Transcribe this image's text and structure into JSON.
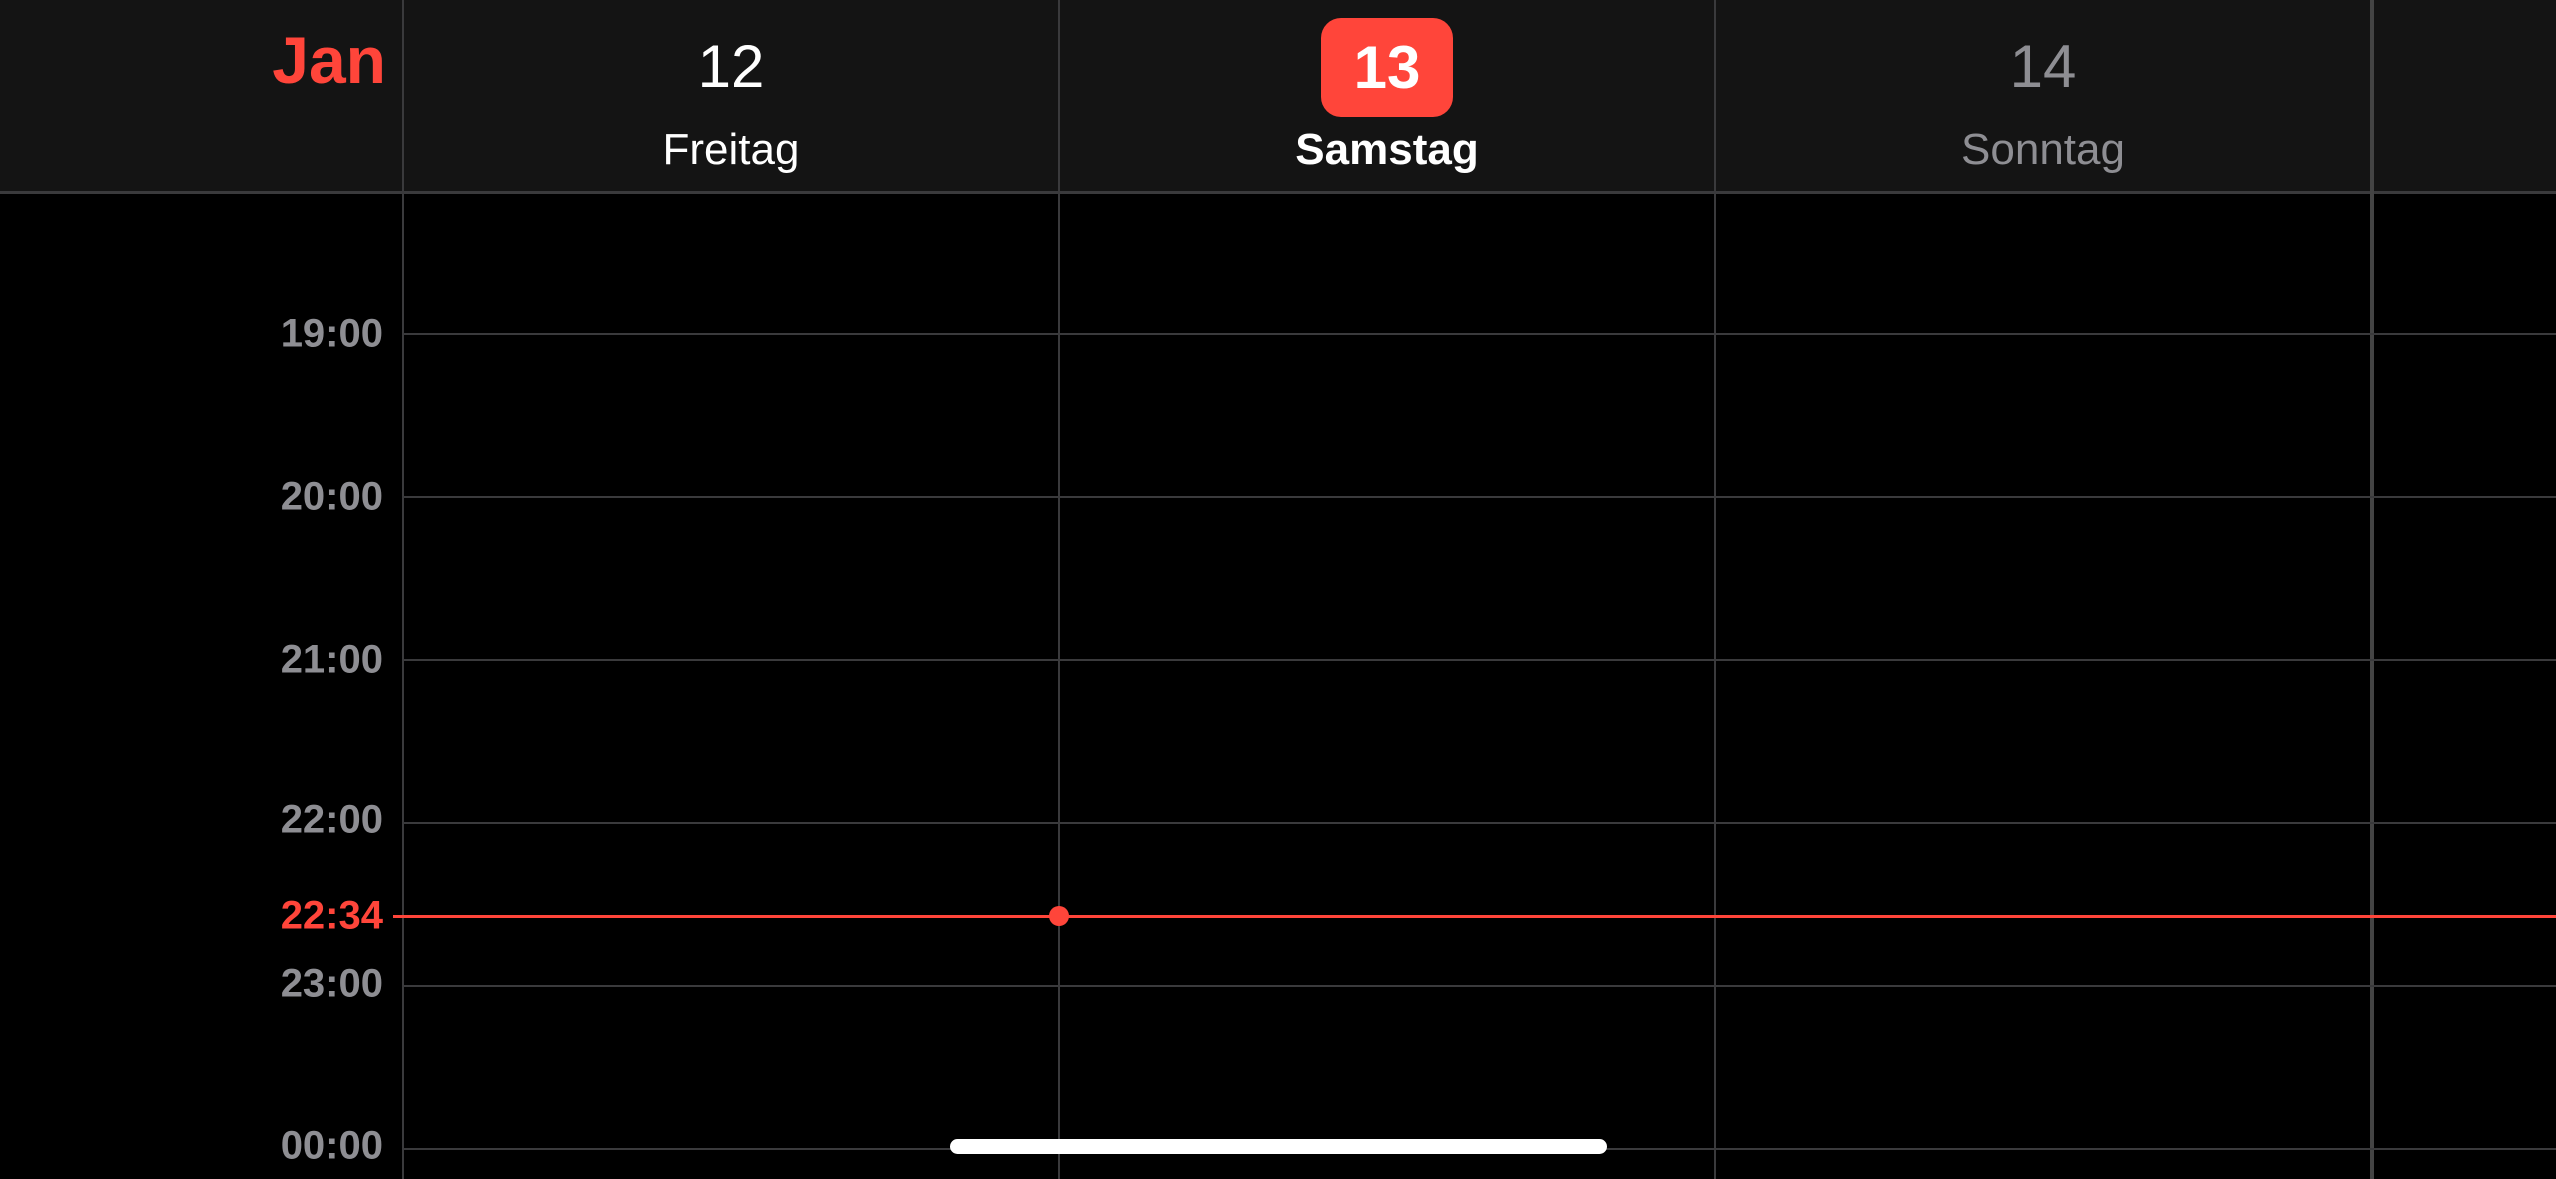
{
  "header": {
    "month": "Jan",
    "days": [
      {
        "number": "12",
        "name": "Freitag",
        "state": "past"
      },
      {
        "number": "13",
        "name": "Samstag",
        "state": "today"
      },
      {
        "number": "14",
        "name": "Sonntag",
        "state": "future"
      }
    ]
  },
  "timeline": {
    "hours": [
      "19:00",
      "20:00",
      "21:00",
      "22:00",
      "23:00",
      "00:00"
    ],
    "now": "22:34"
  },
  "colors": {
    "accent": "#ff453a",
    "muted": "#8e8e93",
    "header_bg": "#141414"
  }
}
